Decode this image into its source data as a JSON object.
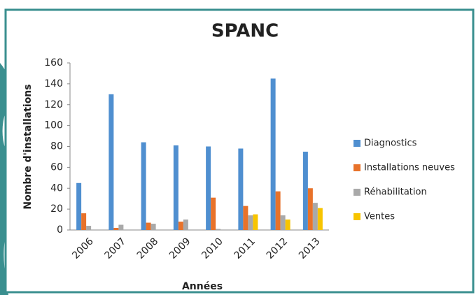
{
  "chart_data": {
    "type": "bar",
    "title": "SPANC",
    "x_label": "Années",
    "y_label": "Nombre d'installations",
    "categories": [
      "2006",
      "2007",
      "2008",
      "2009",
      "2010",
      "2011",
      "2012",
      "2013"
    ],
    "series": [
      {
        "name": "Diagnostics",
        "color": "#4f8fd0",
        "values": [
          45,
          130,
          84,
          81,
          80,
          78,
          145,
          75
        ]
      },
      {
        "name": "Installations neuves",
        "color": "#e8722a",
        "values": [
          16,
          2,
          7,
          8,
          31,
          23,
          37,
          40
        ]
      },
      {
        "name": "Réhabilitation",
        "color": "#a9a9a9",
        "values": [
          4,
          5,
          6,
          10,
          1,
          14,
          14,
          26
        ]
      },
      {
        "name": "Ventes",
        "color": "#f7c400",
        "values": [
          0,
          0,
          0,
          0,
          0,
          15,
          10,
          21
        ]
      }
    ],
    "ylim": [
      0,
      160
    ],
    "yticks": [
      0,
      20,
      40,
      60,
      80,
      100,
      120,
      140,
      160
    ],
    "grid": false,
    "legend": "right"
  }
}
